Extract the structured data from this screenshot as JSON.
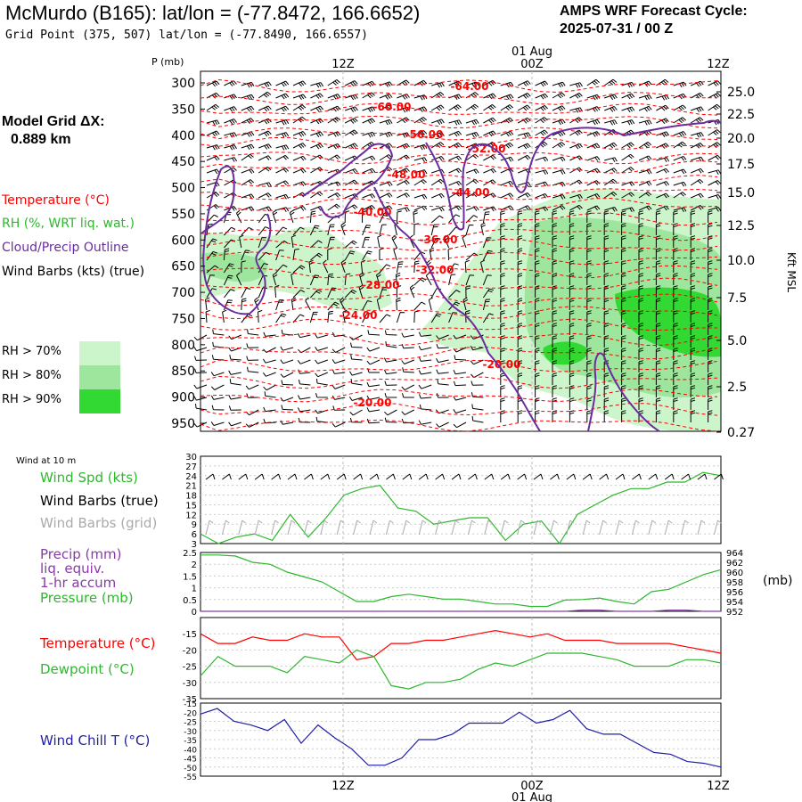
{
  "header": {
    "title": "McMurdo (B165):  lat/lon = (-77.8472, 166.6652)",
    "subtitle": "Grid Point (375, 507) lat/lon = (-77.8490, 166.6557)",
    "forecast_line1": "AMPS WRF Forecast Cycle:",
    "forecast_line2": "2025-07-31 / 00  Z"
  },
  "left_legend": {
    "model_grid_line1": "Model Grid ΔX:",
    "model_grid_line2": "0.889 km",
    "temperature": "Temperature (°C)",
    "rh": "RH (%, WRT liq. wat.)",
    "cloud": "Cloud/Precip Outline",
    "wind": "Wind Barbs (kts) (true)",
    "rh70": "RH > 70%",
    "rh80": "RH > 80%",
    "rh90": "RH > 90%"
  },
  "colors": {
    "temperature": "#ff0000",
    "rh": "#2db82d",
    "cloud": "#6a2d9e",
    "windchill": "#1f1fa8",
    "rh70": "#ccf5cc",
    "rh80": "#9ee69e",
    "rh90": "#33d933",
    "wind_grid": "#aaaaaa",
    "precip": "#8a3aa8"
  },
  "chart_data": [
    {
      "type": "heatmap",
      "title": "",
      "ylabel": "P (mb)",
      "y2label": "Kft MSL",
      "time_ticks": [
        "12Z",
        "00Z",
        "12Z"
      ],
      "date_label": "01 Aug",
      "pressure_ticks": [
        300,
        350,
        400,
        450,
        500,
        550,
        600,
        650,
        700,
        750,
        800,
        850,
        900,
        950
      ],
      "height_ticks": [
        "25.0",
        "22.5",
        "20.0",
        "17.5",
        "15.0",
        "12.5",
        "10.0",
        "7.5",
        "5.0",
        "2.5",
        "0.27"
      ],
      "temperature_labels": [
        "-64.00",
        "-60.00",
        "-56.00",
        "-52.00",
        "-48.00",
        "-44.00",
        "-40.00",
        "-36.00",
        "-32.00",
        "-28.00",
        "-24.00",
        "-20.00",
        "-20.00"
      ]
    },
    {
      "type": "line",
      "panel_label": "Wind at 10 m",
      "series": [
        {
          "name": "Wind Spd (kts)",
          "values": [
            6,
            3,
            5,
            6,
            4,
            12,
            5,
            11,
            18,
            20,
            21,
            14,
            13,
            9,
            10,
            11,
            11,
            4,
            9,
            10,
            3,
            12,
            15,
            18,
            20,
            20,
            22,
            22,
            25,
            24
          ]
        }
      ],
      "legend": [
        "Wind Spd (kts)",
        "Wind Barbs (true)",
        "Wind Barbs (grid)"
      ],
      "yticks": [
        3,
        6,
        9,
        12,
        15,
        18,
        21,
        24,
        27,
        30
      ],
      "ylim": [
        3,
        30
      ]
    },
    {
      "type": "line",
      "legend": [
        "Precip (mm)",
        "liq. equiv.",
        "1-hr accum",
        "Pressure (mb)"
      ],
      "series": [
        {
          "name": "Pressure (mb)",
          "values": [
            963.5,
            963.5,
            963.3,
            962,
            961.6,
            960,
            959,
            958,
            956,
            954,
            954,
            955,
            955.5,
            955,
            954.5,
            954.5,
            954,
            953.5,
            953.5,
            953,
            953,
            954.3,
            954.4,
            954.7,
            954,
            953.5,
            956,
            956.5,
            958,
            959.5,
            960.5
          ]
        },
        {
          "name": "Precip (mm)",
          "values": [
            0,
            0,
            0,
            0,
            0,
            0,
            0,
            0,
            0,
            0,
            0,
            0,
            0,
            0,
            0,
            0,
            0,
            0,
            0,
            0,
            0,
            0,
            0.05,
            0.05,
            0,
            0,
            0,
            0.05,
            0.05,
            0,
            0
          ]
        }
      ],
      "yticks_left": [
        0.0,
        0.5,
        1.0,
        1.5,
        2.0,
        2.5
      ],
      "yticks_right": [
        952,
        954,
        956,
        958,
        960,
        962,
        964
      ],
      "ylabel_right": "(mb)",
      "ylim": [
        0,
        2.5
      ],
      "y2lim": [
        952,
        964
      ]
    },
    {
      "type": "line",
      "legend": [
        "Temperature (°C)",
        "Dewpoint (°C)"
      ],
      "series": [
        {
          "name": "Temperature (°C)",
          "values": [
            -15,
            -18,
            -18,
            -16,
            -17,
            -17,
            -15,
            -16,
            -16,
            -23,
            -22,
            -18,
            -18,
            -17,
            -17,
            -16,
            -15,
            -14,
            -15,
            -16,
            -15,
            -17,
            -17,
            -17,
            -18,
            -18,
            -18,
            -18,
            -19,
            -20,
            -21
          ]
        },
        {
          "name": "Dewpoint (°C)",
          "values": [
            -28,
            -22,
            -25,
            -25,
            -25,
            -27,
            -22,
            -23,
            -24,
            -20,
            -22,
            -31,
            -32,
            -30,
            -30,
            -29,
            -26,
            -24,
            -25,
            -23,
            -21,
            -21,
            -21,
            -22,
            -23,
            -25,
            -25,
            -25,
            -23,
            -23,
            -24
          ]
        }
      ],
      "yticks": [
        -35,
        -30,
        -25,
        -20,
        -15
      ],
      "ylim": [
        -35,
        -10
      ]
    },
    {
      "type": "line",
      "legend": [
        "Wind Chill T (°C)"
      ],
      "series": [
        {
          "name": "Wind Chill T (°C)",
          "values": [
            -21,
            -18,
            -25,
            -27,
            -30,
            -24,
            -37,
            -27,
            -34,
            -40,
            -49,
            -49,
            -45,
            -35,
            -35,
            -32,
            -26,
            -26,
            -26,
            -20,
            -26,
            -24,
            -19,
            -29,
            -32,
            -32,
            -37,
            -42,
            -43,
            -47,
            -48,
            -50
          ]
        }
      ],
      "yticks": [
        -55,
        -50,
        -45,
        -40,
        -35,
        -30,
        -25,
        -20,
        -15
      ],
      "ylim": [
        -55,
        -15
      ]
    }
  ]
}
